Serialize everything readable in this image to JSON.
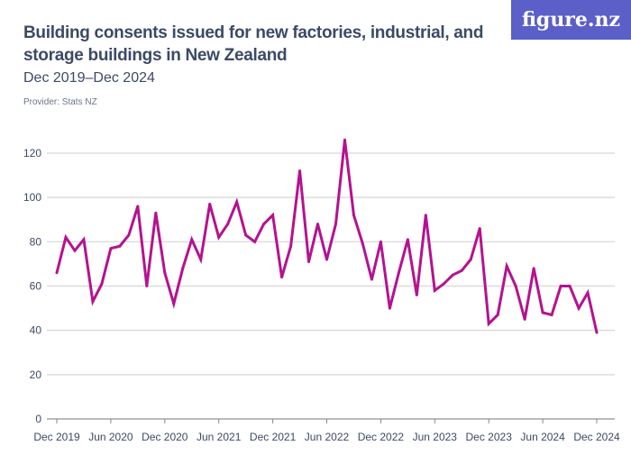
{
  "header": {
    "title": "Building consents issued for new factories, industrial, and storage buildings in New Zealand",
    "subtitle": "Dec 2019–Dec 2024",
    "provider": "Provider: Stats NZ",
    "logo": "figure.nz"
  },
  "colors": {
    "line": "#b5128f",
    "grid": "#dddddd",
    "logo_bg": "#5b5fc7"
  },
  "chart_data": {
    "type": "line",
    "title": "Building consents issued for new factories, industrial, and storage buildings in New Zealand",
    "xlabel": "",
    "ylabel": "",
    "ylim": [
      0,
      130
    ],
    "yticks": [
      0,
      20,
      40,
      60,
      80,
      100,
      120
    ],
    "xtick_labels": [
      "Dec 2019",
      "Jun 2020",
      "Dec 2020",
      "Jun 2021",
      "Dec 2021",
      "Jun 2022",
      "Dec 2022",
      "Jun 2023",
      "Dec 2023",
      "Jun 2024",
      "Dec 2024"
    ],
    "grid": true,
    "series": [
      {
        "name": "Building consents",
        "values": [
          66,
          82,
          76,
          81,
          53,
          61,
          77,
          78,
          83,
          96,
          60,
          93,
          66,
          52,
          68,
          81,
          72,
          97,
          82,
          88,
          98,
          83,
          80,
          88,
          92,
          64,
          78,
          112,
          71,
          88,
          72,
          88,
          126,
          92,
          79,
          63,
          80,
          50,
          66,
          81,
          56,
          92,
          58,
          61,
          65,
          67,
          72,
          86,
          43,
          47,
          69,
          60,
          45,
          68,
          48,
          47,
          60,
          60,
          50,
          57,
          39
        ]
      }
    ]
  }
}
